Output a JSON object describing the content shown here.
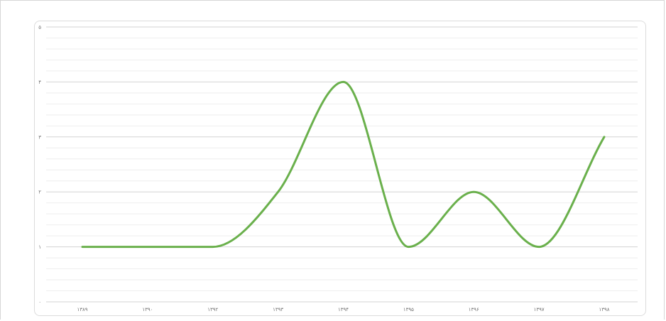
{
  "chart_data": {
    "type": "line",
    "title": "",
    "xlabel": "",
    "ylabel": "",
    "x": [
      "۱۳۸۹",
      "۱۳۹۰",
      "۱۳۹۲",
      "۱۳۹۳",
      "۱۳۹۴",
      "۱۳۹۵",
      "۱۳۹۶",
      "۱۳۹۷",
      "۱۳۹۸"
    ],
    "series": [
      {
        "values": [
          1,
          1,
          1,
          2,
          4,
          1,
          2,
          1,
          3
        ],
        "color": "#6ab04c"
      }
    ],
    "y_ticks": [
      "۰",
      "۱",
      "۲",
      "۳",
      "۴",
      "۵"
    ],
    "ylim": [
      0,
      5
    ],
    "grid": true,
    "smooth": true,
    "legend": "none"
  }
}
